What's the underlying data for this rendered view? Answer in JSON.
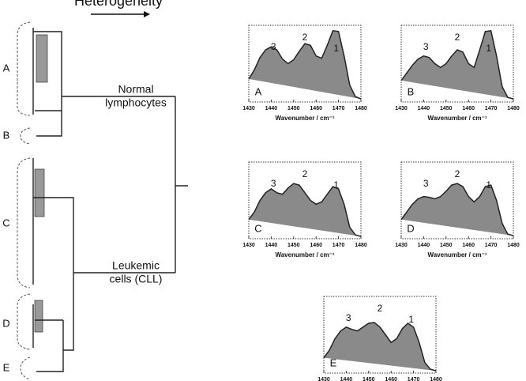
{
  "figure": {
    "heading": "Heterogeneity",
    "clusters": [
      "A",
      "B",
      "C",
      "D",
      "E"
    ],
    "groups": [
      {
        "lines": [
          "Normal",
          "lymphocytes"
        ]
      },
      {
        "lines": [
          "Leukemic",
          "cells (CLL)"
        ]
      }
    ]
  },
  "chart_data": [
    {
      "type": "area",
      "panel": "A",
      "xlim": [
        1430,
        1480
      ],
      "xticks": [
        1430,
        1440,
        1450,
        1460,
        1470,
        1480
      ],
      "xlabel": "Wavenumber / cm⁻¹",
      "annotations": [
        "3",
        "2",
        "1"
      ],
      "x": [
        1430,
        1432.5,
        1435,
        1437.5,
        1440,
        1442.5,
        1445,
        1447.5,
        1450,
        1452.5,
        1455,
        1457.5,
        1460,
        1462.5,
        1465,
        1467.5,
        1470,
        1472.5,
        1475,
        1477.5,
        1480
      ],
      "values": [
        0.3,
        0.42,
        0.58,
        0.68,
        0.72,
        0.68,
        0.56,
        0.5,
        0.55,
        0.66,
        0.76,
        0.74,
        0.6,
        0.57,
        0.74,
        0.93,
        0.92,
        0.6,
        0.22,
        0.07,
        0.04
      ]
    },
    {
      "type": "area",
      "panel": "B",
      "xlim": [
        1430,
        1480
      ],
      "xticks": [
        1430,
        1440,
        1450,
        1460,
        1470,
        1480
      ],
      "xlabel": "Wavenumber / cm⁻¹",
      "annotations": [
        "3",
        "2",
        "1"
      ],
      "x": [
        1430,
        1432.5,
        1435,
        1437.5,
        1440,
        1442.5,
        1445,
        1447.5,
        1450,
        1452.5,
        1455,
        1457.5,
        1460,
        1462.5,
        1465,
        1467.5,
        1470,
        1472.5,
        1475,
        1477.5,
        1480
      ],
      "values": [
        0.28,
        0.38,
        0.48,
        0.56,
        0.6,
        0.58,
        0.5,
        0.45,
        0.5,
        0.6,
        0.68,
        0.65,
        0.5,
        0.45,
        0.68,
        0.92,
        0.93,
        0.6,
        0.2,
        0.06,
        0.04
      ]
    },
    {
      "type": "area",
      "panel": "C",
      "xlim": [
        1430,
        1480
      ],
      "xticks": [
        1430,
        1440,
        1450,
        1460,
        1470,
        1480
      ],
      "xlabel": "Wavenumber / cm⁻¹",
      "annotations": [
        "3",
        "2",
        "1"
      ],
      "x": [
        1430,
        1432.5,
        1435,
        1437.5,
        1440,
        1442.5,
        1445,
        1447.5,
        1450,
        1452.5,
        1455,
        1457.5,
        1460,
        1462.5,
        1465,
        1467.5,
        1470,
        1472.5,
        1475,
        1477.5,
        1480
      ],
      "values": [
        0.25,
        0.35,
        0.5,
        0.6,
        0.65,
        0.6,
        0.58,
        0.66,
        0.72,
        0.7,
        0.6,
        0.5,
        0.45,
        0.48,
        0.58,
        0.68,
        0.65,
        0.45,
        0.15,
        0.05,
        0.03
      ]
    },
    {
      "type": "area",
      "panel": "D",
      "xlim": [
        1430,
        1480
      ],
      "xticks": [
        1430,
        1440,
        1450,
        1460,
        1470,
        1480
      ],
      "xlabel": "Wavenumber / cm⁻¹",
      "annotations": [
        "3",
        "2",
        "1"
      ],
      "x": [
        1430,
        1432.5,
        1435,
        1437.5,
        1440,
        1442.5,
        1445,
        1447.5,
        1450,
        1452.5,
        1455,
        1457.5,
        1460,
        1462.5,
        1465,
        1467.5,
        1470,
        1472.5,
        1475,
        1477.5,
        1480
      ],
      "values": [
        0.25,
        0.35,
        0.45,
        0.52,
        0.55,
        0.54,
        0.52,
        0.55,
        0.62,
        0.7,
        0.72,
        0.68,
        0.55,
        0.48,
        0.55,
        0.68,
        0.7,
        0.5,
        0.2,
        0.06,
        0.04
      ]
    },
    {
      "type": "area",
      "panel": "E",
      "xlim": [
        1430,
        1480
      ],
      "xticks": [
        1430,
        1440,
        1450,
        1460,
        1470,
        1480
      ],
      "xlabel": "Wavenumber / cm⁻¹",
      "annotations": [
        "3",
        "2",
        "1"
      ],
      "x": [
        1430,
        1432.5,
        1435,
        1437.5,
        1440,
        1442.5,
        1445,
        1447.5,
        1450,
        1452.5,
        1455,
        1457.5,
        1460,
        1462.5,
        1465,
        1467.5,
        1470,
        1472.5,
        1475,
        1477.5,
        1480
      ],
      "values": [
        0.2,
        0.3,
        0.45,
        0.55,
        0.6,
        0.57,
        0.55,
        0.6,
        0.65,
        0.66,
        0.6,
        0.5,
        0.4,
        0.45,
        0.58,
        0.65,
        0.6,
        0.4,
        0.14,
        0.05,
        0.03
      ]
    }
  ]
}
